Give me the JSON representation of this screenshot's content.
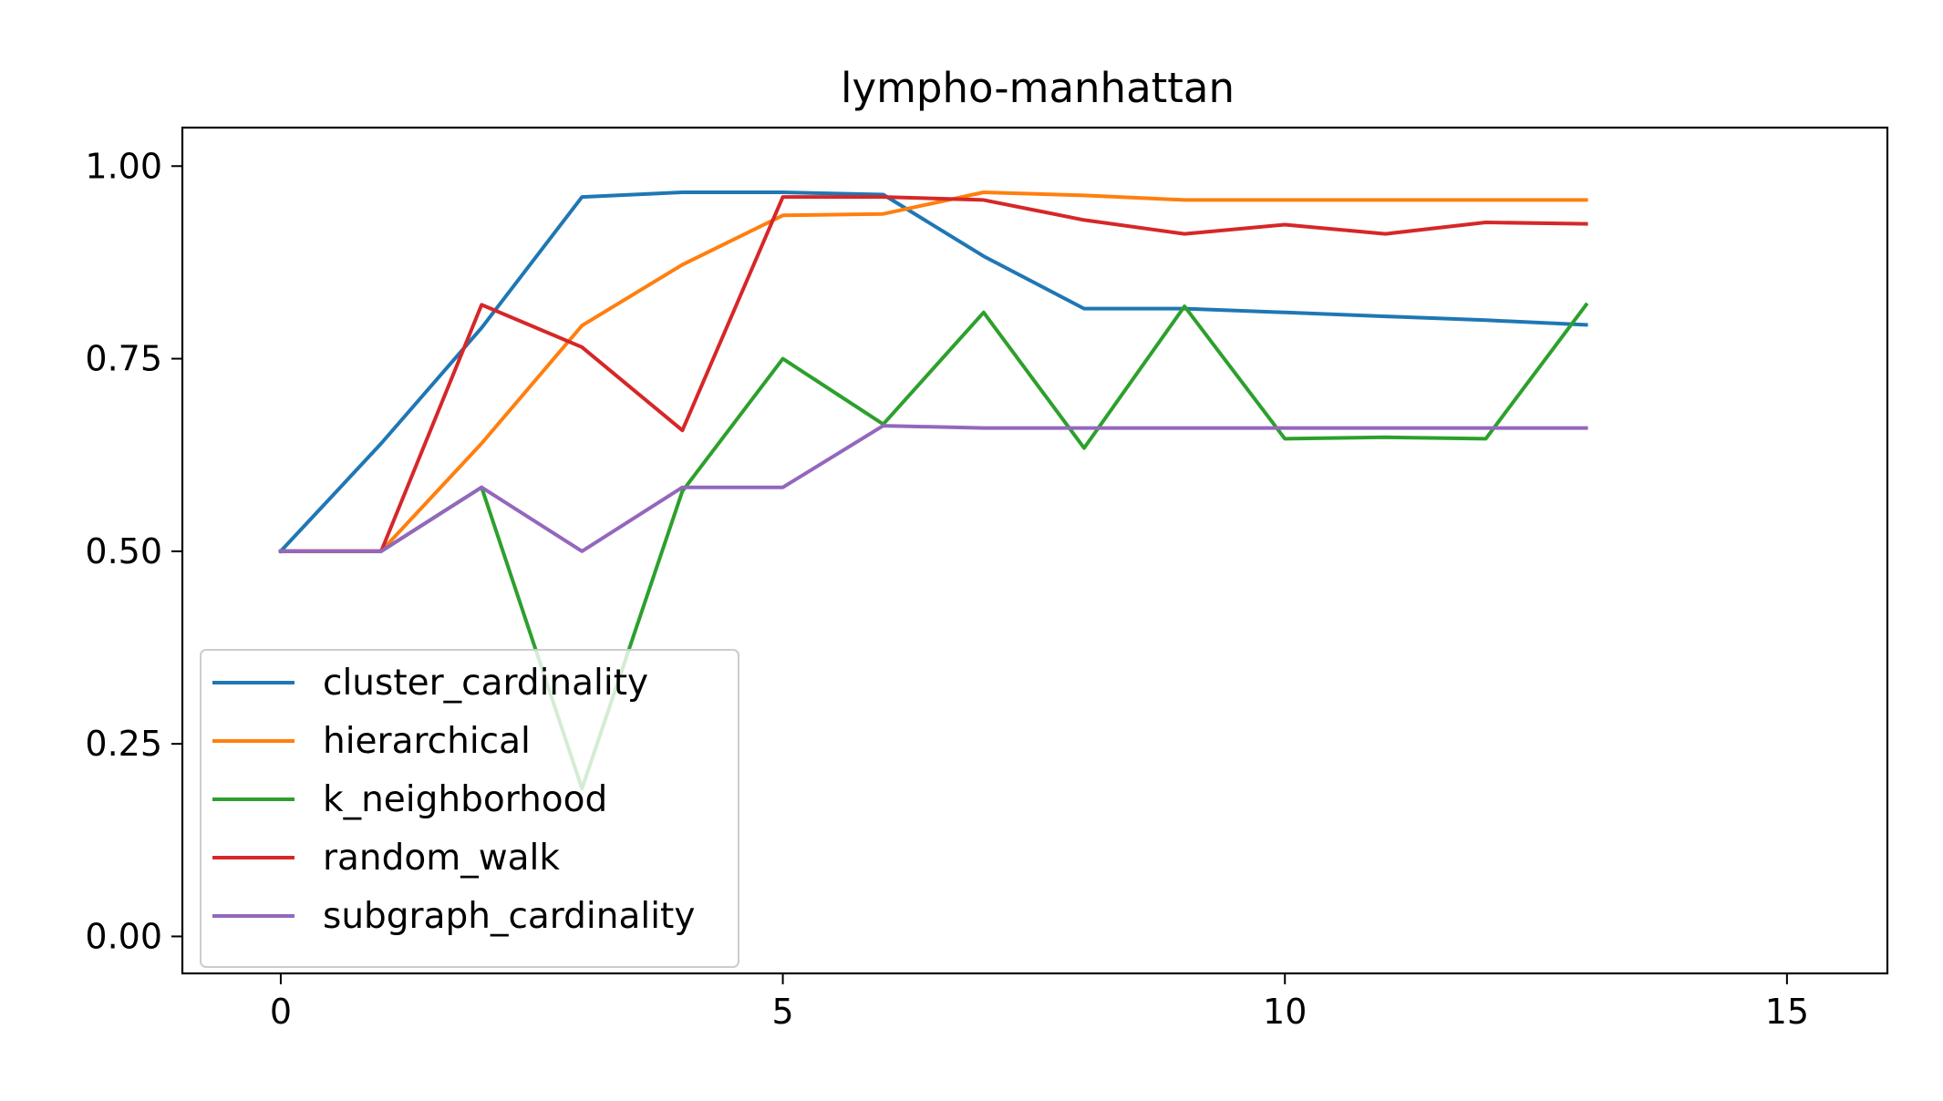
{
  "chart_data": {
    "type": "line",
    "title": "lympho-manhattan",
    "xlabel": "",
    "ylabel": "",
    "xlim": [
      -0.98,
      16.0
    ],
    "ylim": [
      -0.048,
      1.05
    ],
    "x_ticks": [
      0,
      5,
      10,
      15
    ],
    "x_tick_labels": [
      "0",
      "5",
      "10",
      "15"
    ],
    "y_ticks": [
      0.0,
      0.25,
      0.5,
      0.75,
      1.0
    ],
    "y_tick_labels": [
      "0.00",
      "0.25",
      "0.50",
      "0.75",
      "1.00"
    ],
    "grid": false,
    "legend_position": "lower-left",
    "x": [
      0,
      1,
      2,
      3,
      4,
      5,
      6,
      7,
      8,
      9,
      10,
      11,
      12,
      13
    ],
    "series": [
      {
        "name": "cluster_cardinality",
        "color": "#1f77b4",
        "values": [
          0.5,
          0.64,
          0.79,
          0.96,
          0.966,
          0.966,
          0.963,
          0.883,
          0.815,
          0.815,
          0.81,
          0.805,
          0.8,
          0.794
        ]
      },
      {
        "name": "hierarchical",
        "color": "#ff7f0e",
        "values": [
          0.5,
          0.5,
          0.64,
          0.793,
          0.872,
          0.936,
          0.938,
          0.966,
          0.962,
          0.956,
          0.956,
          0.956,
          0.956,
          0.956
        ]
      },
      {
        "name": "k_neighborhood",
        "color": "#2ca02c",
        "values": [
          0.5,
          0.5,
          0.583,
          0.192,
          0.578,
          0.75,
          0.665,
          0.81,
          0.634,
          0.818,
          0.646,
          0.648,
          0.646,
          0.82
        ]
      },
      {
        "name": "random_walk",
        "color": "#d62728",
        "values": [
          0.5,
          0.5,
          0.82,
          0.765,
          0.657,
          0.96,
          0.96,
          0.956,
          0.93,
          0.912,
          0.924,
          0.912,
          0.927,
          0.925
        ]
      },
      {
        "name": "subgraph_cardinality",
        "color": "#9467bd",
        "values": [
          0.5,
          0.5,
          0.583,
          0.5,
          0.583,
          0.583,
          0.663,
          0.66,
          0.66,
          0.66,
          0.66,
          0.66,
          0.66,
          0.66
        ]
      }
    ]
  }
}
